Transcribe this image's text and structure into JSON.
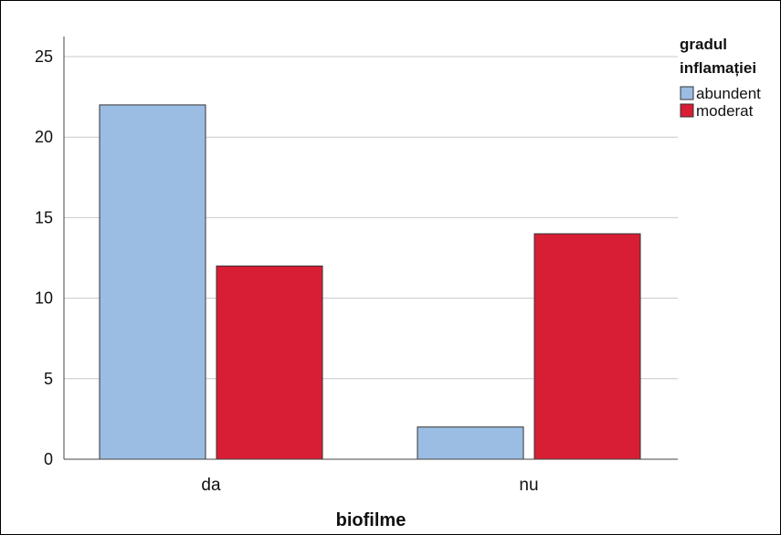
{
  "chart_data": {
    "type": "bar",
    "categories": [
      "da",
      "nu"
    ],
    "series": [
      {
        "name": "abundent",
        "values": [
          22,
          2
        ],
        "color": "#9bbde3"
      },
      {
        "name": "moderat",
        "values": [
          12,
          14
        ],
        "color": "#d81e35"
      }
    ],
    "xlabel": "biofilme",
    "ylabel": "",
    "ylim": [
      0,
      25
    ],
    "yticks": [
      0,
      5,
      10,
      15,
      20,
      25
    ],
    "grid": true,
    "legend": {
      "title_lines": [
        "gradul",
        "inflamației"
      ],
      "placement": "top-right"
    }
  }
}
